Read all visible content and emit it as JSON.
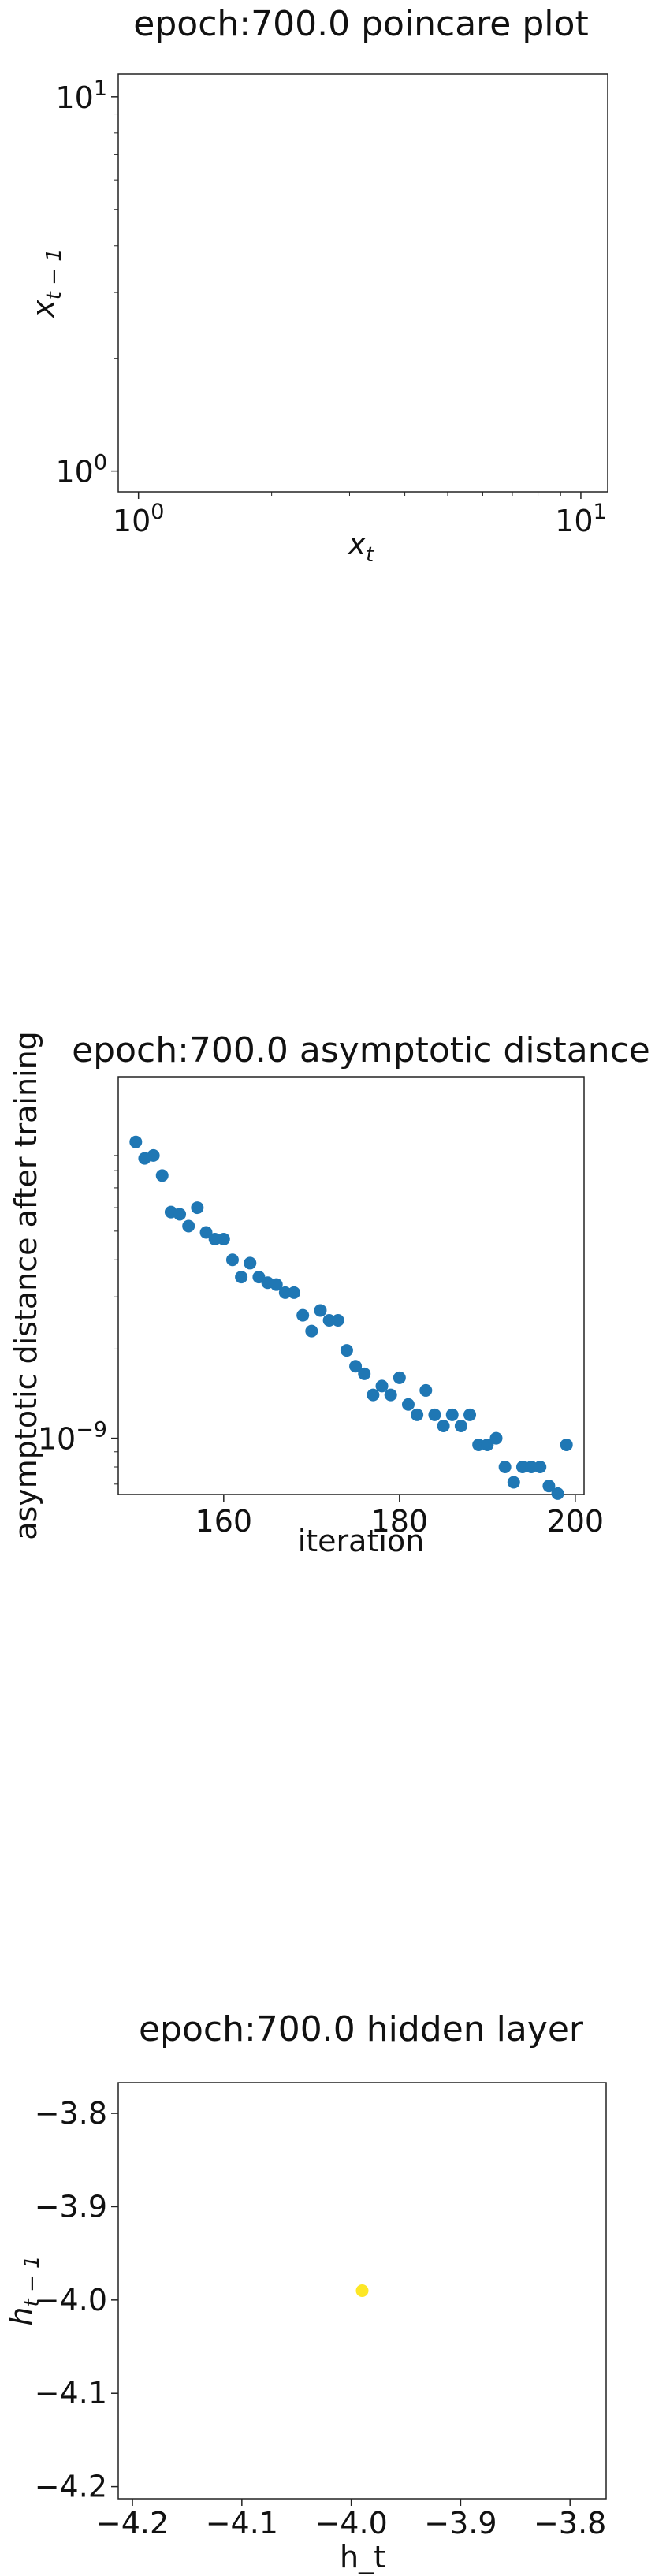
{
  "chart_data": [
    {
      "type": "scatter",
      "title": "epoch:700.0 poincare plot",
      "xlabel": "x_t",
      "ylabel": "x_{t-1}",
      "xscale": "log",
      "yscale": "log",
      "xlim": [
        0.9,
        11.5
      ],
      "ylim": [
        0.88,
        11.5
      ],
      "xticks": [
        {
          "v": 1,
          "label": "10",
          "exp": "0"
        },
        {
          "v": 10,
          "label": "10",
          "exp": "1"
        }
      ],
      "yticks": [
        {
          "v": 1,
          "label": "10",
          "exp": "0"
        },
        {
          "v": 10,
          "label": "10",
          "exp": "1"
        }
      ],
      "points": [],
      "grid": false
    },
    {
      "type": "scatter",
      "title": "epoch:700.0 asymptotic distance",
      "xlabel": "iteration",
      "ylabel": "asymptotic distance after training",
      "yscale": "log",
      "xlim": [
        148,
        201
      ],
      "ylim_log10": [
        -9.19,
        -7.78
      ],
      "xticks": [
        160,
        180,
        200
      ],
      "yticks": [
        {
          "v": 1e-09,
          "label": "10",
          "exp": "−9"
        }
      ],
      "color": "#1f77b4",
      "x": [
        150,
        151,
        152,
        153,
        154,
        155,
        156,
        157,
        158,
        159,
        160,
        161,
        162,
        163,
        164,
        165,
        166,
        167,
        168,
        169,
        170,
        171,
        172,
        173,
        174,
        175,
        176,
        177,
        178,
        179,
        180,
        181,
        182,
        183,
        184,
        185,
        186,
        187,
        188,
        189,
        190,
        191,
        192,
        193,
        194,
        195,
        196,
        197,
        198,
        199
      ],
      "y": [
        1e-08,
        8.8e-09,
        9e-09,
        7.7e-09,
        5.8e-09,
        5.7e-09,
        5.2e-09,
        6e-09,
        4.95e-09,
        4.7e-09,
        4.7e-09,
        4e-09,
        3.5e-09,
        3.9e-09,
        3.5e-09,
        3.35e-09,
        3.3e-09,
        3.1e-09,
        3.1e-09,
        2.6e-09,
        2.3e-09,
        2.7e-09,
        2.5e-09,
        2.5e-09,
        1.98e-09,
        1.75e-09,
        1.65e-09,
        1.4e-09,
        1.5e-09,
        1.4e-09,
        1.6e-09,
        1.3e-09,
        1.2e-09,
        1.45e-09,
        1.2e-09,
        1.1e-09,
        1.2e-09,
        1.1e-09,
        1.2e-09,
        9.5e-10,
        9.5e-10,
        1e-09,
        8e-10,
        7.1e-10,
        8e-10,
        8e-10,
        8e-10,
        6.9e-10,
        6.5e-10,
        9.5e-10
      ],
      "grid": false
    },
    {
      "type": "scatter",
      "title": "epoch:700.0 hidden layer",
      "xlabel": "h_t",
      "ylabel": "h_{t-1}",
      "xlim": [
        -4.213,
        -3.767
      ],
      "ylim": [
        -4.213,
        -3.767
      ],
      "xticks": [
        -4.2,
        -4.1,
        -4.0,
        -3.9,
        -3.8
      ],
      "yticks": [
        -4.2,
        -4.1,
        -4.0,
        -3.9,
        -3.8
      ],
      "xticklabels": [
        "−4.2",
        "−4.1",
        "−4.0",
        "−3.9",
        "−3.8"
      ],
      "yticklabels": [
        "−4.2",
        "−4.1",
        "−4.0",
        "−3.9",
        "−3.8"
      ],
      "color": "#fde725",
      "points": [
        {
          "x": -3.99,
          "y": -3.99
        }
      ],
      "grid": false
    }
  ]
}
